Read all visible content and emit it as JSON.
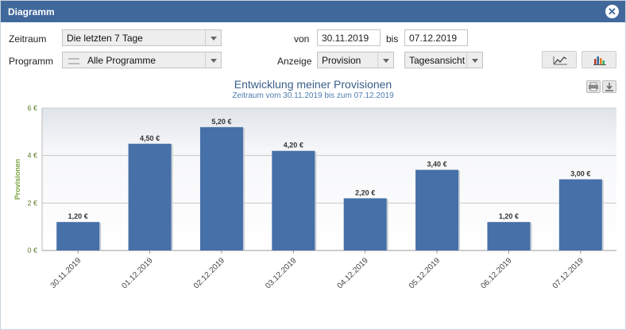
{
  "dialog": {
    "title": "Diagramm",
    "close_icon": "close-icon"
  },
  "filters": {
    "zeitraum_label": "Zeitraum",
    "zeitraum_value": "Die letzten 7 Tage",
    "programm_label": "Programm",
    "programm_value": "Alle Programme",
    "von_label": "von",
    "von_value": "30.11.2019",
    "bis_label": "bis",
    "bis_value": "07.12.2019",
    "anzeige_label": "Anzeige",
    "anzeige_value": "Provision",
    "ansicht_value": "Tagesansicht",
    "line_chart_icon": "line-chart-icon",
    "bar_chart_icon": "bar-chart-icon",
    "print_icon": "print-icon",
    "download_icon": "download-icon"
  },
  "colors": {
    "titlebar": "#41689b",
    "bar": "#4670a8",
    "axis_label": "#7ba23f"
  },
  "chart_data": {
    "type": "bar",
    "title": "Entwicklung meiner Provisionen",
    "subtitle": "Zeitraum vom 30.11.2019 bis zum 07.12.2019",
    "ylabel": "Provisionen",
    "xlabel": "",
    "categories": [
      "30.11.2019",
      "01.12.2019",
      "02.12.2019",
      "03.12.2019",
      "04.12.2019",
      "05.12.2019",
      "06.12.2019",
      "07.12.2019"
    ],
    "values": [
      1.2,
      4.5,
      5.2,
      4.2,
      2.2,
      3.4,
      1.2,
      3.0
    ],
    "data_labels": [
      "1,20 €",
      "4,50 €",
      "5,20 €",
      "4,20 €",
      "2,20 €",
      "3,40 €",
      "1,20 €",
      "3,00 €"
    ],
    "ylim": [
      0,
      6
    ],
    "yticks": [
      0,
      2,
      4,
      6
    ],
    "ytick_labels": [
      "0 €",
      "2 €",
      "4 €",
      "6 €"
    ],
    "grid": true,
    "legend": "none"
  }
}
